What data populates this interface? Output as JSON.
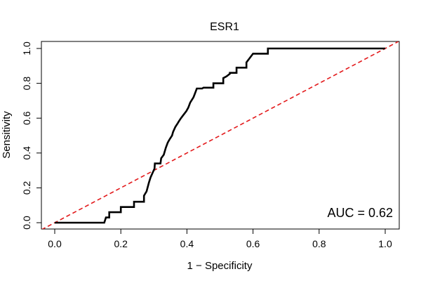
{
  "chart_data": {
    "type": "line",
    "title": "ESR1",
    "xlabel": "1 − Specificity",
    "ylabel": "Sensitivity",
    "xlim": [
      0,
      1
    ],
    "ylim": [
      0,
      1
    ],
    "x_ticks": [
      "0.0",
      "0.2",
      "0.4",
      "0.6",
      "0.8",
      "1.0"
    ],
    "y_ticks": [
      "0.0",
      "0.2",
      "0.4",
      "0.6",
      "0.8",
      "1.0"
    ],
    "grid": false,
    "annotation": "AUC = 0.62",
    "series": [
      {
        "style": "solid",
        "color": "#000000",
        "x": [
          0,
          0.15,
          0.155,
          0.165,
          0.165,
          0.2,
          0.2,
          0.24,
          0.24,
          0.27,
          0.27,
          0.278,
          0.285,
          0.29,
          0.297,
          0.302,
          0.303,
          0.32,
          0.322,
          0.33,
          0.336,
          0.342,
          0.348,
          0.355,
          0.358,
          0.365,
          0.372,
          0.375,
          0.382,
          0.39,
          0.398,
          0.404,
          0.41,
          0.42,
          0.424,
          0.43,
          0.437,
          0.44,
          0.446,
          0.45,
          0.48,
          0.48,
          0.51,
          0.51,
          0.52,
          0.53,
          0.53,
          0.55,
          0.55,
          0.58,
          0.58,
          0.59,
          0.6,
          0.6,
          0.645,
          0.645,
          1.0
        ],
        "y": [
          0,
          0,
          0.03,
          0.03,
          0.06,
          0.06,
          0.09,
          0.09,
          0.12,
          0.12,
          0.155,
          0.18,
          0.23,
          0.26,
          0.29,
          0.31,
          0.34,
          0.34,
          0.37,
          0.39,
          0.43,
          0.46,
          0.48,
          0.5,
          0.52,
          0.55,
          0.57,
          0.58,
          0.6,
          0.62,
          0.64,
          0.66,
          0.69,
          0.72,
          0.74,
          0.77,
          0.77,
          0.77,
          0.77,
          0.775,
          0.775,
          0.8,
          0.8,
          0.83,
          0.84,
          0.855,
          0.86,
          0.86,
          0.89,
          0.89,
          0.92,
          0.945,
          0.97,
          0.97,
          0.97,
          1.0,
          1.0
        ]
      },
      {
        "style": "dashed",
        "color": "#e31a1c",
        "x": [
          -0.04,
          1.04
        ],
        "y": [
          -0.04,
          1.04
        ]
      }
    ]
  }
}
